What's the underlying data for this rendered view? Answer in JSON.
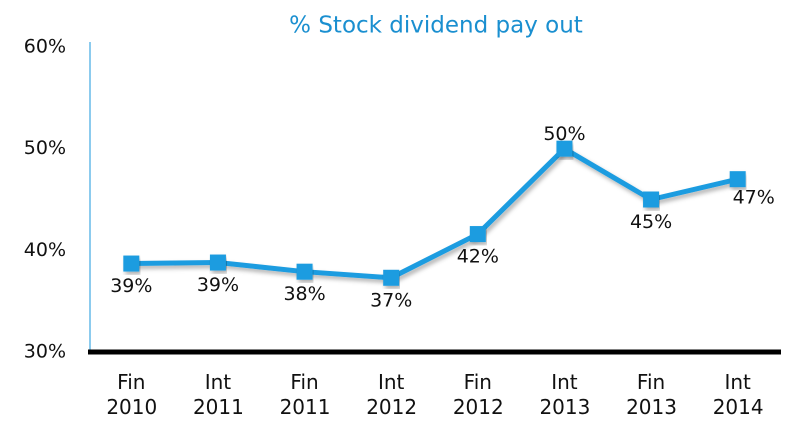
{
  "chart_data": {
    "type": "line",
    "title": "% Stock dividend pay out",
    "categories": [
      "Fin 2010",
      "Int 2011",
      "Fin 2011",
      "Int 2012",
      "Fin 2012",
      "Int 2013",
      "Fin 2013",
      "Int 2014"
    ],
    "series": [
      {
        "color": "#1b9ce0",
        "values": [
          38.7,
          38.8,
          37.9,
          37.3,
          41.6,
          50,
          45,
          47
        ],
        "value_labels": [
          "39%",
          "39%",
          "38%",
          "37%",
          "42%",
          "50%",
          "45%",
          "47%"
        ]
      }
    ],
    "ylim": [
      30,
      60
    ],
    "yticks": [
      {
        "value": 30,
        "label": "30%"
      },
      {
        "value": 40,
        "label": "40%"
      },
      {
        "value": 50,
        "label": "50%"
      },
      {
        "value": 60,
        "label": "60%"
      }
    ],
    "title_color": "#1a8fd0"
  }
}
